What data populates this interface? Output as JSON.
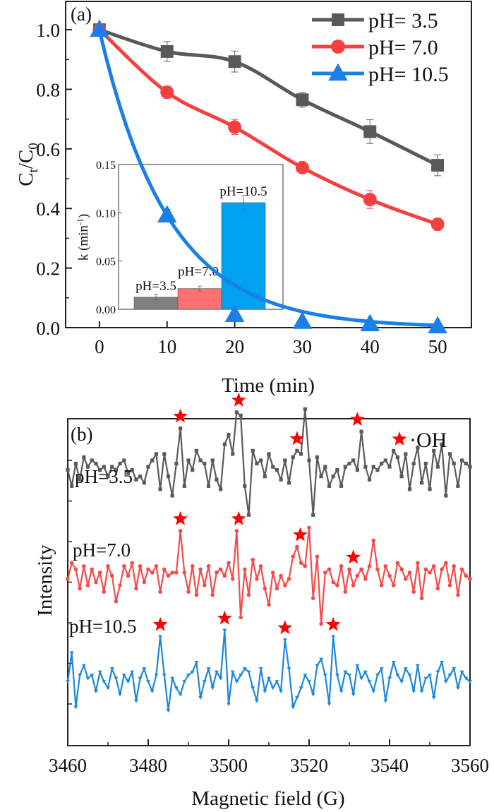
{
  "chart_data": [
    {
      "panel": "(a)",
      "type": "line",
      "title": "",
      "xlabel": "Time (min)",
      "ylabel": "Ct/C0",
      "ylabel_main": "C",
      "ylabel_sub1": "t",
      "ylabel_slash": "/C",
      "ylabel_sub2": "0",
      "xlim": [
        -5,
        55
      ],
      "ylim": [
        0,
        1.095
      ],
      "xticks": [
        0,
        10,
        20,
        30,
        40,
        50
      ],
      "xtick_labels": [
        "0",
        "10",
        "20",
        "30",
        "40",
        "50"
      ],
      "yticks": [
        0.0,
        0.2,
        0.4,
        0.6,
        0.8,
        1.0
      ],
      "ytick_labels": [
        "0.0",
        "0.2",
        "0.4",
        "0.6",
        "0.8",
        "1.0"
      ],
      "grid": false,
      "legend_placement": "top-right",
      "x": [
        0,
        10,
        20,
        30,
        40,
        50
      ],
      "series": [
        {
          "name": "pH= 3.5",
          "marker": "square",
          "color": "#595959",
          "values": [
            1.0,
            0.927,
            0.893,
            0.765,
            0.658,
            0.545
          ],
          "errors": [
            0.01,
            0.033,
            0.035,
            0.025,
            0.04,
            0.035
          ]
        },
        {
          "name": "pH= 7.0",
          "marker": "circle",
          "color": "#f54040",
          "values": [
            1.0,
            0.79,
            0.673,
            0.537,
            0.43,
            0.347
          ],
          "errors": [
            0.01,
            0.02,
            0.025,
            0.012,
            0.03,
            0.02
          ]
        },
        {
          "name": "pH= 10.5",
          "marker": "triangle",
          "color": "#1a7fe6",
          "values": [
            1.0,
            0.377,
            0.043,
            0.02,
            0.012,
            0.005
          ],
          "errors": [
            0.01,
            0.02,
            0.01,
            0.005,
            0.005,
            0.003
          ]
        }
      ],
      "inset": {
        "type": "bar",
        "ylabel": "k (min",
        "ylabel_sup": "-1",
        "ylabel_close": ")",
        "ylim": [
          0,
          0.15
        ],
        "yticks": [
          0.0,
          0.05,
          0.1,
          0.15
        ],
        "ytick_labels": [
          "0.00",
          "0.05",
          "0.10",
          "0.15"
        ],
        "categories": [
          "pH=3.5",
          "pH=7.0",
          "pH=10.5"
        ],
        "values": [
          0.0125,
          0.0215,
          0.1105
        ],
        "errors": [
          0.0025,
          0.0025,
          0.0075
        ],
        "colors": [
          "#808080",
          "#ff7070",
          "#00a2f0"
        ]
      }
    },
    {
      "panel": "(b)",
      "type": "line",
      "title": "",
      "xlabel": "Magnetic field (G)",
      "ylabel": "Intensity",
      "xlim": [
        3460,
        3560
      ],
      "xticks": [
        3460,
        3480,
        3500,
        3520,
        3540,
        3560
      ],
      "xtick_labels": [
        "3460",
        "3480",
        "3500",
        "3520",
        "3540",
        "3560"
      ],
      "ylim": [
        -8.6,
        1.6
      ],
      "yticks_unlabeled": 7,
      "grid": false,
      "legend": {
        "marker": "star",
        "color": "#ff0000",
        "label": "·OH",
        "placement": "top-right"
      },
      "field_step": 1,
      "field_start": 3460,
      "series": [
        {
          "name": "pH=3.5",
          "marker": "square",
          "color": "#5a5a5a",
          "offset": 0,
          "peak_fields": [
            3488,
            3502.5,
            3517,
            3532
          ],
          "values": [
            0.0,
            -0.5,
            0.2,
            -0.3,
            0.4,
            0.1,
            0.3,
            0.2,
            0.0,
            0.1,
            -0.2,
            0.1,
            0.0,
            0.2,
            0.3,
            -0.1,
            0.0,
            -0.3,
            -0.2,
            -0.4,
            0.1,
            0.3,
            0.5,
            -0.6,
            0.5,
            -0.2,
            -0.8,
            0.2,
            1.3,
            -0.5,
            0.3,
            0.0,
            0.6,
            0.3,
            0.2,
            -0.5,
            0.3,
            -0.3,
            -0.6,
            0.8,
            1.1,
            0.5,
            1.8,
            1.7,
            -0.5,
            -1.4,
            0.6,
            0.2,
            0.3,
            -0.2,
            0.5,
            0.1,
            0.0,
            -0.3,
            0.3,
            -0.4,
            0.4,
            0.6,
            0.5,
            1.9,
            0.3,
            -1.4,
            0.4,
            -0.2,
            0.1,
            -0.5,
            -0.2,
            0.0,
            -0.5,
            0.1,
            0.2,
            0.3,
            0.0,
            1.2,
            0.1,
            -0.3,
            0.1,
            0.0,
            0.2,
            0.3,
            0.1,
            0.6,
            0.4,
            -0.2,
            0.5,
            -0.6,
            0.2,
            0.7,
            -0.4,
            0.2,
            -0.6,
            0.6,
            0.1,
            0.8,
            -0.8,
            0.5,
            0.2,
            -0.5,
            0.3,
            0.2,
            0.1
          ]
        },
        {
          "name": "pH=7.0",
          "marker": "circle",
          "color": "#f54a4a",
          "offset": -3.4,
          "peak_fields": [
            3488,
            3502.5,
            3517.8,
            3531
          ],
          "values": [
            0.0,
            0.5,
            0.3,
            -0.3,
            0.4,
            -0.2,
            0.3,
            -0.1,
            0.2,
            -0.4,
            0.4,
            0.1,
            -0.7,
            -0.2,
            0.4,
            0.1,
            0.5,
            -0.3,
            0.4,
            -0.1,
            0.3,
            0.2,
            0.4,
            -0.4,
            0.3,
            0.1,
            0.2,
            0.2,
            1.5,
            0.2,
            -0.4,
            0.4,
            -0.5,
            0.3,
            -0.2,
            0.4,
            -0.5,
            0.2,
            0.3,
            0.1,
            0.5,
            0.0,
            1.5,
            -1.2,
            0.3,
            -0.5,
            0.6,
            0.0,
            0.4,
            -0.3,
            -0.8,
            0.2,
            -0.3,
            0.1,
            -0.2,
            0.0,
            0.7,
            1.0,
            0.5,
            0.4,
            1.6,
            -0.6,
            0.7,
            -1.4,
            0.2,
            0.3,
            -0.1,
            -0.2,
            0.4,
            -0.4,
            0.3,
            -0.2,
            0.1,
            0.3,
            0.0,
            0.4,
            1.2,
            0.3,
            -0.2,
            0.4,
            0.1,
            -0.2,
            0.5,
            0.3,
            0.0,
            0.2,
            -0.4,
            0.5,
            -0.6,
            0.3,
            0.2,
            0.4,
            -0.3,
            0.3,
            0.5,
            -0.2,
            0.4,
            -0.5,
            0.3,
            0.1,
            0.0
          ]
        },
        {
          "name": "pH=10.5",
          "marker": "triangle-down",
          "color": "#1d87dc",
          "offset": -6.6,
          "peak_fields": [
            3483,
            3499,
            3514,
            3526
          ],
          "values": [
            0.0,
            0.9,
            -0.8,
            0.2,
            0.5,
            0.1,
            0.2,
            -0.3,
            0.3,
            0.0,
            -0.2,
            0.4,
            0.1,
            -0.4,
            0.2,
            0.0,
            0.3,
            -0.6,
            0.1,
            0.4,
            0.0,
            -0.3,
            0.2,
            1.4,
            0.2,
            -0.9,
            0.1,
            -0.2,
            -0.4,
            0.0,
            0.2,
            0.3,
            0.6,
            -0.5,
            0.0,
            0.4,
            -0.2,
            0.3,
            0.1,
            1.6,
            -0.7,
            0.3,
            0.0,
            0.2,
            0.4,
            0.3,
            -0.2,
            -0.6,
            0.4,
            -0.3,
            0.1,
            -0.2,
            0.0,
            -0.3,
            1.3,
            0.4,
            -0.8,
            -0.5,
            -0.2,
            0.2,
            0.0,
            -0.4,
            0.5,
            0.7,
            0.2,
            -0.7,
            1.4,
            0.2,
            -0.3,
            0.3,
            0.2,
            -0.4,
            0.5,
            0.1,
            0.3,
            0.0,
            -0.3,
            0.2,
            0.4,
            -0.6,
            0.1,
            0.6,
            0.2,
            0.0,
            0.4,
            0.2,
            -0.3,
            0.5,
            -0.3,
            0.1,
            0.2,
            -0.5,
            0.3,
            0.6,
            0.0,
            0.2,
            0.4,
            -0.2,
            0.3,
            0.1,
            0.0
          ]
        }
      ]
    }
  ]
}
